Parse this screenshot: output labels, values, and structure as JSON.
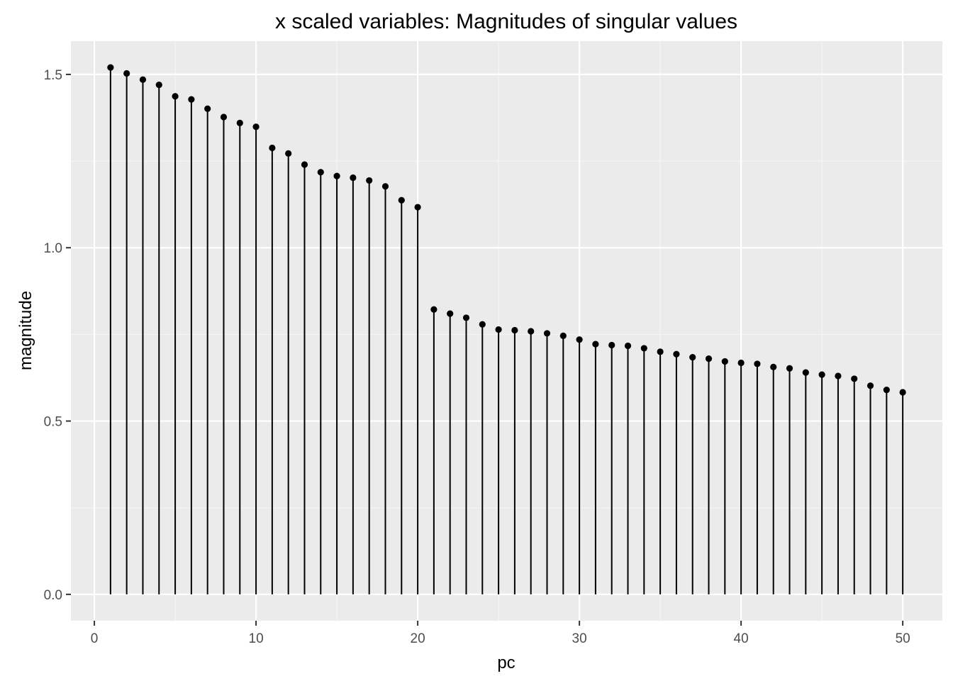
{
  "chart_data": {
    "type": "lollipop",
    "title": "x scaled variables: Magnitudes of singular values",
    "xlabel": "pc",
    "ylabel": "magnitude",
    "xlim": [
      -1.45,
      52.45
    ],
    "ylim": [
      -0.076,
      1.596
    ],
    "x_ticks": [
      0,
      10,
      20,
      30,
      40,
      50
    ],
    "x_tick_labels": [
      "0",
      "10",
      "20",
      "30",
      "40",
      "50"
    ],
    "y_ticks": [
      0.0,
      0.5,
      1.0,
      1.5
    ],
    "y_tick_labels": [
      "0.0",
      "0.5",
      "1.0",
      "1.5"
    ],
    "grid": true,
    "colors": {
      "panel_background": "#ebebeb",
      "grid_major": "#ffffff",
      "grid_minor": "#f5f5f5",
      "stem": "#000000",
      "point": "#000000",
      "tick_mark": "#333333"
    },
    "x": [
      1,
      2,
      3,
      4,
      5,
      6,
      7,
      8,
      9,
      10,
      11,
      12,
      13,
      14,
      15,
      16,
      17,
      18,
      19,
      20,
      21,
      22,
      23,
      24,
      25,
      26,
      27,
      28,
      29,
      30,
      31,
      32,
      33,
      34,
      35,
      36,
      37,
      38,
      39,
      40,
      41,
      42,
      43,
      44,
      45,
      46,
      47,
      48,
      49,
      50
    ],
    "values": [
      1.52,
      1.503,
      1.485,
      1.47,
      1.437,
      1.428,
      1.401,
      1.377,
      1.36,
      1.349,
      1.288,
      1.272,
      1.24,
      1.218,
      1.207,
      1.202,
      1.194,
      1.177,
      1.137,
      1.117,
      0.822,
      0.81,
      0.798,
      0.779,
      0.764,
      0.762,
      0.759,
      0.753,
      0.746,
      0.735,
      0.722,
      0.719,
      0.717,
      0.71,
      0.7,
      0.693,
      0.684,
      0.68,
      0.672,
      0.668,
      0.665,
      0.656,
      0.652,
      0.64,
      0.634,
      0.63,
      0.622,
      0.602,
      0.59,
      0.583
    ]
  }
}
